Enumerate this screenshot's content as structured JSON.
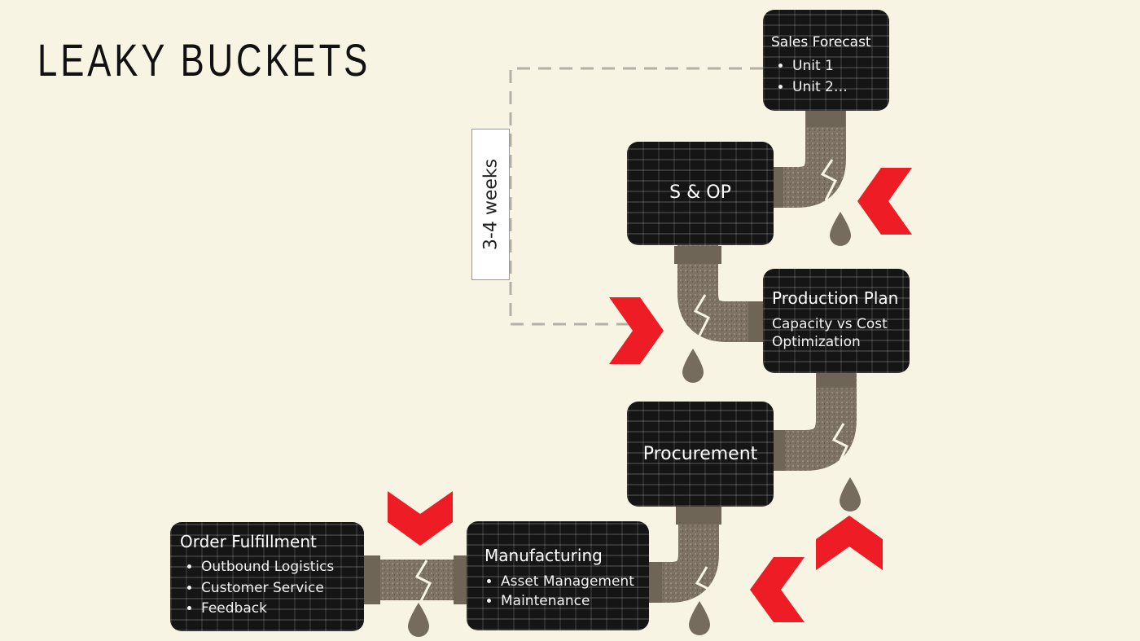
{
  "title": "LEAKY BUCKETS",
  "loop_label": "3-4 weeks",
  "boxes": {
    "sales_forecast": {
      "title": "Sales Forecast",
      "items": [
        "Unit 1",
        "Unit 2…"
      ]
    },
    "sop": {
      "title": "S & OP"
    },
    "production_plan": {
      "title": "Production Plan",
      "text": "Capacity vs Cost Optimization"
    },
    "procurement": {
      "title": "Procurement"
    },
    "manufacturing": {
      "title": "Manufacturing",
      "items": [
        "Asset Management",
        "Maintenance"
      ]
    },
    "order_fulfillment": {
      "title": "Order Fulfillment",
      "items": [
        "Outbound Logistics",
        "Customer Service",
        "Feedback"
      ]
    }
  },
  "colors": {
    "background": "#f7f4e3",
    "box": "#151515",
    "pipe": "#7d7263",
    "leak_marker": "#ee1c24",
    "dashed_line": "#b3b0a8"
  },
  "icons": [
    "pipe-icon",
    "water-drop-icon",
    "crack-icon",
    "red-chevron-icon"
  ]
}
